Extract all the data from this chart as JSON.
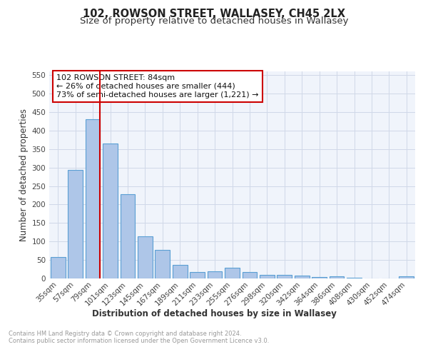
{
  "title": "102, ROWSON STREET, WALLASEY, CH45 2LX",
  "subtitle": "Size of property relative to detached houses in Wallasey",
  "xlabel": "Distribution of detached houses by size in Wallasey",
  "ylabel": "Number of detached properties",
  "categories": [
    "35sqm",
    "57sqm",
    "79sqm",
    "101sqm",
    "123sqm",
    "145sqm",
    "167sqm",
    "189sqm",
    "211sqm",
    "233sqm",
    "255sqm",
    "276sqm",
    "298sqm",
    "320sqm",
    "342sqm",
    "364sqm",
    "386sqm",
    "408sqm",
    "430sqm",
    "452sqm",
    "474sqm"
  ],
  "values": [
    57,
    293,
    430,
    365,
    228,
    113,
    77,
    37,
    18,
    20,
    29,
    17,
    10,
    10,
    8,
    4,
    5,
    2,
    0,
    0,
    5
  ],
  "bar_color": "#aec6e8",
  "bar_edge_color": "#5a9fd4",
  "bar_linewidth": 0.8,
  "grid_color": "#d0d8e8",
  "property_line_x": 2,
  "property_line_color": "#cc0000",
  "annotation_text": "102 ROWSON STREET: 84sqm\n← 26% of detached houses are smaller (444)\n73% of semi-detached houses are larger (1,221) →",
  "annotation_box_color": "#cc0000",
  "ylim": [
    0,
    560
  ],
  "yticks": [
    0,
    50,
    100,
    150,
    200,
    250,
    300,
    350,
    400,
    450,
    500,
    550
  ],
  "footnote": "Contains HM Land Registry data © Crown copyright and database right 2024.\nContains public sector information licensed under the Open Government Licence v3.0.",
  "bg_color": "#f0f4fb",
  "fig_bg_color": "#ffffff",
  "title_fontsize": 10.5,
  "subtitle_fontsize": 9.5,
  "axis_label_fontsize": 8.5,
  "tick_fontsize": 7.5,
  "annotation_fontsize": 8
}
